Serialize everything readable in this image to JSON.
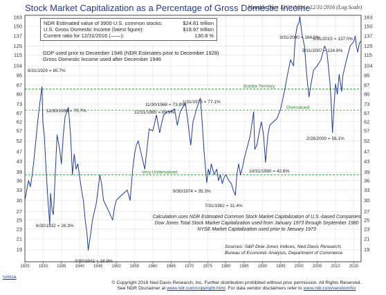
{
  "header": {
    "title": "Stock Market Capitalization as a Percentage of Gross Domestic Income",
    "subtitle": "Monthly Data 12/31/1924 - 12/31/2016 (Log Scale)"
  },
  "info_box": {
    "rows": [
      {
        "label": "NDR Estimated value of 3900 U.S. common stocks:",
        "value": "$24.81 trillion"
      },
      {
        "label": "U.S. Gross Domestic Income (latest figure):",
        "value": "$18.97 trillion"
      },
      {
        "label": "Current ratio for 12/31/2016 (——):",
        "value": "130.8 %"
      }
    ],
    "note_lines": [
      "GDP used prior to December 1946 (NDR Estimates prior to December 1928)",
      "Gross Domestic Income used after December 1946"
    ]
  },
  "calculation_note": [
    "Calculation uses NDR Estimated Common Stock Market Capitalization of U.S.-based Companies",
    "Dow Jones Total Stock Market Capitalization used from January 1973 through September 1980",
    "NYSE Market Capitalization used prior to January 1973"
  ],
  "sources": [
    "Sources: S&P Dow Jones Indices, Ned Davis Research,",
    "Bureau of Economic Analysis, Department of Commerce"
  ],
  "footer": {
    "line1": "© Copyright 2016 Ned Davis Research, Inc. Further distribution prohibited without prior permission. All Rights Reserved.",
    "line2_prefix": "See NDR Disclaimer at ",
    "line2_link": "www.ndr.com/copyright.html",
    "line2_suffix": ". For data vendor disclaimers refer to ",
    "line2_link2": "www.ndr.com/vendorinfo/"
  },
  "corner_tag": "S0552A",
  "colors": {
    "title": "#1f3a93",
    "series": "#1f3a93",
    "reference_line": "#2e8b2e",
    "axis": "#444444"
  },
  "chart_data": {
    "type": "line",
    "title": "Stock Market Capitalization as a Percentage of Gross Domestic Income",
    "subtitle": "Monthly Data 12/31/1924 - 12/31/2016 (Log Scale)",
    "y_scale": "log",
    "ylim": [
      17,
      166
    ],
    "xlim": [
      1925,
      2017
    ],
    "y_ticks": [
      19,
      21,
      23,
      25,
      27,
      30,
      33,
      36,
      39,
      43,
      47,
      52,
      57,
      62,
      67,
      73,
      80,
      87,
      95,
      104,
      115,
      125,
      137,
      150,
      163
    ],
    "x_ticks": [
      {
        "x": 1925,
        "label": "1925"
      },
      {
        "x": 1930,
        "label": "1930"
      },
      {
        "x": 1935,
        "label": "1935"
      },
      {
        "x": 1940,
        "label": "1940"
      },
      {
        "x": 1945,
        "label": "1945"
      },
      {
        "x": 1950,
        "label": "1950"
      },
      {
        "x": 1955,
        "label": "1955"
      },
      {
        "x": 1960,
        "label": "1960"
      },
      {
        "x": 1965,
        "label": "1965"
      },
      {
        "x": 1970,
        "label": "1970"
      },
      {
        "x": 1975,
        "label": "1975"
      },
      {
        "x": 1980,
        "label": "1980"
      },
      {
        "x": 1985,
        "label": "1985"
      },
      {
        "x": 1990,
        "label": "1990"
      },
      {
        "x": 1995,
        "label": "1995"
      },
      {
        "x": 2000,
        "label": "2000"
      },
      {
        "x": 2005,
        "label": "2005"
      },
      {
        "x": 2010,
        "label": "2010"
      },
      {
        "x": 2015,
        "label": "2015"
      }
    ],
    "grid": true,
    "series": [
      {
        "x": [
          1925.0,
          1925.5,
          1926.0,
          1926.5,
          1927.0,
          1927.5,
          1928.0,
          1928.5,
          1929.0,
          1929.67,
          1929.9,
          1930.3,
          1930.8,
          1931.3,
          1931.8,
          1932.0,
          1932.5,
          1932.8,
          1933.3,
          1933.8,
          1934.5,
          1935.0,
          1935.5,
          1936.0,
          1936.9,
          1937.5,
          1938.0,
          1938.5,
          1939.0,
          1939.5,
          1940.0,
          1940.5,
          1941.0,
          1941.5,
          1942.0,
          1942.33,
          1942.8,
          1943.5,
          1944.0,
          1944.5,
          1945.0,
          1945.5,
          1946.0,
          1946.5,
          1947.0,
          1948.0,
          1949.0,
          1949.5,
          1950.0,
          1951.0,
          1952.0,
          1953.0,
          1953.8,
          1954.5,
          1955.0,
          1955.5,
          1956.0,
          1957.0,
          1957.8,
          1958.5,
          1959.0,
          1960.0,
          1961.0,
          1961.9,
          1962.5,
          1963.0,
          1964.0,
          1965.0,
          1965.95,
          1966.7,
          1967.5,
          1968.0,
          1968.9,
          1969.5,
          1970.0,
          1970.4,
          1971.0,
          1972.0,
          1973.0,
          1973.5,
          1974.0,
          1974.74,
          1975.2,
          1975.6,
          1976.0,
          1976.8,
          1977.5,
          1978.0,
          1978.5,
          1979.0,
          1979.5,
          1980.0,
          1980.8,
          1981.5,
          1982.0,
          1982.58,
          1983.0,
          1983.5,
          1984.0,
          1984.6,
          1985.0,
          1986.0,
          1986.7,
          1987.6,
          1987.9,
          1988.5,
          1989.0,
          1989.7,
          1990.3,
          1990.83,
          1991.5,
          1992.0,
          1993.0,
          1994.0,
          1995.0,
          1996.0,
          1997.0,
          1997.7,
          1998.5,
          1999.0,
          1999.5,
          2000.0,
          2000.25,
          2000.8,
          2001.5,
          2001.9,
          2002.3,
          2002.75,
          2003.3,
          2004.0,
          2005.0,
          2006.0,
          2007.0,
          2007.58,
          2008.0,
          2008.5,
          2008.9,
          2009.16,
          2009.6,
          2010.0,
          2010.5,
          2011.0,
          2011.7,
          2012.0,
          2013.0,
          2014.0,
          2015.0,
          2015.41,
          2015.7,
          2016.1,
          2016.5,
          2017.0
        ],
        "y": [
          30,
          33,
          36,
          34,
          38,
          44,
          52,
          62,
          72,
          85.7,
          62,
          55,
          40,
          30,
          24,
          32,
          27,
          26.3,
          38,
          55,
          48,
          42,
          55,
          65,
          70.7,
          55,
          38,
          46,
          40,
          42,
          37,
          33,
          30,
          25,
          22,
          18.9,
          21,
          25,
          27,
          29,
          33,
          38,
          35,
          30,
          29,
          27,
          25,
          28,
          30,
          31,
          32,
          33,
          30,
          40,
          46,
          50,
          52,
          45,
          40,
          50,
          58,
          57,
          66,
          56,
          62,
          66,
          68,
          68,
          69.9,
          60,
          68,
          70,
          73.8,
          64,
          55,
          50,
          62,
          70,
          77.1,
          62,
          48,
          35.3,
          40,
          38,
          42,
          38,
          40,
          36,
          38,
          35,
          37,
          38,
          36,
          35,
          33,
          31.4,
          38,
          42,
          38,
          41,
          44,
          50,
          55,
          68,
          48,
          50,
          55,
          62,
          55,
          42.6,
          55,
          60,
          62,
          64,
          70,
          82,
          98,
          110,
          104,
          135,
          150,
          155,
          164.0,
          140,
          125,
          105,
          90,
          78,
          88,
          100,
          104,
          110,
          124.8,
          120,
          105,
          88,
          70,
          56.1,
          72,
          88,
          80,
          96,
          82,
          95,
          110,
          125,
          130,
          137.0,
          125,
          118,
          128,
          130.8
        ]
      }
    ],
    "annotations": [
      {
        "x": 1929.67,
        "y": 85.7,
        "text": "8/31/1929 = 85.7%"
      },
      {
        "x": 1932.5,
        "y": 26.3,
        "text": "6/30/1932 = 26.3%"
      },
      {
        "x": 1936.9,
        "y": 70.7,
        "text": "11/30/1936 = 70.7%"
      },
      {
        "x": 1942.33,
        "y": 18.9,
        "text": "4/30/1942 = 18.9%"
      },
      {
        "x": 1965.95,
        "y": 69.9,
        "text": "12/31/1965 = 69.9%"
      },
      {
        "x": 1968.9,
        "y": 73.8,
        "text": "11/30/1968 = 73.8%"
      },
      {
        "x": 1973.08,
        "y": 77.1,
        "text": "1/31/1973 = 77.1%"
      },
      {
        "x": 1974.74,
        "y": 35.3,
        "text": "9/30/1974 = 35.3%"
      },
      {
        "x": 1982.58,
        "y": 31.4,
        "text": "7/31/1982 = 31.4%"
      },
      {
        "x": 1990.83,
        "y": 42.6,
        "text": "10/31/1990 = 42.6%"
      },
      {
        "x": 2000.25,
        "y": 164.0,
        "text": "3/31/2000 = 164.0%"
      },
      {
        "x": 2007.58,
        "y": 124.8,
        "text": "5/31/2007 = 124.8%"
      },
      {
        "x": 2009.16,
        "y": 56.1,
        "text": "2/28/2009 = 56.1%"
      },
      {
        "x": 2015.41,
        "y": 137.0,
        "text": "5/31/2015 = 137.0%"
      }
    ],
    "reference_lines": [
      {
        "y": 84,
        "label": "Bubble Territory"
      },
      {
        "y": 69,
        "label": "Overvalued"
      },
      {
        "y": 38,
        "label": "Very Undervalued"
      }
    ]
  }
}
